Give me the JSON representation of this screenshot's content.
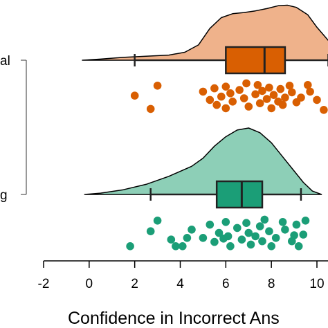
{
  "chart_data": {
    "type": "raincloud",
    "title": "",
    "xlabel": "Confidence in Incorrect Ans",
    "ylabel": "",
    "xlim": [
      -2,
      10.6
    ],
    "x_ticks": [
      -2,
      0,
      2,
      4,
      6,
      8,
      10
    ],
    "x_tick_labels": [
      "-2",
      "0",
      "2",
      "4",
      "6",
      "8",
      "10"
    ],
    "grid": false,
    "groups": [
      {
        "label": "al",
        "color": "#d95f02",
        "fill": "#efb28b",
        "density": {
          "x": [
            -0.3,
            0.5,
            1.5,
            2.5,
            3.5,
            4.2,
            4.8,
            5.3,
            5.8,
            6.3,
            6.8,
            7.3,
            7.8,
            8.3,
            8.7,
            9.1,
            9.6,
            10.0,
            10.6
          ],
          "y": [
            0.0,
            0.02,
            0.05,
            0.07,
            0.09,
            0.14,
            0.27,
            0.56,
            0.75,
            0.82,
            0.84,
            0.87,
            0.91,
            0.96,
            0.97,
            0.93,
            0.8,
            0.58,
            0.3
          ]
        },
        "box": {
          "whisker_low": 2.0,
          "q1": 6.0,
          "median": 7.7,
          "q3": 8.6,
          "whisker_high": 10.5
        },
        "points": [
          {
            "x": 2.0,
            "y": 0.42
          },
          {
            "x": 3.0,
            "y": 0.12
          },
          {
            "x": 2.7,
            "y": 0.82
          },
          {
            "x": 5.0,
            "y": 0.3
          },
          {
            "x": 5.3,
            "y": 0.55
          },
          {
            "x": 5.5,
            "y": 0.2
          },
          {
            "x": 5.6,
            "y": 0.7
          },
          {
            "x": 5.8,
            "y": 0.45
          },
          {
            "x": 6.0,
            "y": 0.15
          },
          {
            "x": 6.0,
            "y": 0.8
          },
          {
            "x": 6.2,
            "y": 0.35
          },
          {
            "x": 6.3,
            "y": 0.6
          },
          {
            "x": 6.6,
            "y": 0.25
          },
          {
            "x": 6.8,
            "y": 0.5
          },
          {
            "x": 6.9,
            "y": 0.05
          },
          {
            "x": 7.0,
            "y": 0.75
          },
          {
            "x": 7.3,
            "y": 0.38
          },
          {
            "x": 7.4,
            "y": 0.1
          },
          {
            "x": 7.5,
            "y": 0.65
          },
          {
            "x": 7.6,
            "y": 0.28
          },
          {
            "x": 7.8,
            "y": 0.52
          },
          {
            "x": 7.9,
            "y": 0.18
          },
          {
            "x": 8.0,
            "y": 0.8
          },
          {
            "x": 8.1,
            "y": 0.4
          },
          {
            "x": 8.3,
            "y": 0.6
          },
          {
            "x": 8.4,
            "y": 0.22
          },
          {
            "x": 8.5,
            "y": 0.7
          },
          {
            "x": 8.6,
            "y": 0.48
          },
          {
            "x": 8.8,
            "y": 0.12
          },
          {
            "x": 8.9,
            "y": 0.32
          },
          {
            "x": 9.1,
            "y": 0.62
          },
          {
            "x": 9.3,
            "y": 0.48
          },
          {
            "x": 9.6,
            "y": 0.1
          },
          {
            "x": 9.7,
            "y": 0.3
          },
          {
            "x": 10.0,
            "y": 0.55
          },
          {
            "x": 10.3,
            "y": 0.85
          }
        ]
      },
      {
        "label": "g",
        "color": "#1b9e77",
        "fill": "#8dcfb7",
        "density": {
          "x": [
            -0.2,
            0.5,
            1.5,
            2.5,
            3.5,
            4.5,
            5.0,
            5.5,
            6.0,
            6.5,
            7.0,
            7.5,
            8.0,
            8.5,
            9.0,
            9.4,
            9.8,
            10.2
          ],
          "y": [
            0.0,
            0.02,
            0.07,
            0.15,
            0.27,
            0.42,
            0.54,
            0.72,
            0.86,
            0.96,
            0.99,
            0.92,
            0.77,
            0.56,
            0.35,
            0.18,
            0.05,
            0.0
          ]
        },
        "box": {
          "whisker_low": 2.7,
          "q1": 5.6,
          "median": 6.7,
          "q3": 7.6,
          "whisker_high": 9.3
        },
        "points": [
          {
            "x": 1.8,
            "y": 0.85
          },
          {
            "x": 2.7,
            "y": 0.4
          },
          {
            "x": 3.0,
            "y": 0.08
          },
          {
            "x": 3.6,
            "y": 0.65
          },
          {
            "x": 3.8,
            "y": 0.85
          },
          {
            "x": 4.1,
            "y": 0.85
          },
          {
            "x": 4.3,
            "y": 0.6
          },
          {
            "x": 4.5,
            "y": 0.35
          },
          {
            "x": 5.0,
            "y": 0.6
          },
          {
            "x": 5.3,
            "y": 0.2
          },
          {
            "x": 5.5,
            "y": 0.72
          },
          {
            "x": 5.7,
            "y": 0.45
          },
          {
            "x": 6.0,
            "y": 0.12
          },
          {
            "x": 6.1,
            "y": 0.55
          },
          {
            "x": 6.2,
            "y": 0.85
          },
          {
            "x": 6.5,
            "y": 0.3
          },
          {
            "x": 6.7,
            "y": 0.65
          },
          {
            "x": 6.9,
            "y": 0.15
          },
          {
            "x": 7.0,
            "y": 0.45
          },
          {
            "x": 7.1,
            "y": 0.8
          },
          {
            "x": 7.3,
            "y": 0.55
          },
          {
            "x": 7.5,
            "y": 0.25
          },
          {
            "x": 7.6,
            "y": 0.7
          },
          {
            "x": 7.7,
            "y": 0.05
          },
          {
            "x": 7.9,
            "y": 0.4
          },
          {
            "x": 8.0,
            "y": 0.85
          },
          {
            "x": 8.2,
            "y": 0.6
          },
          {
            "x": 8.5,
            "y": 0.12
          },
          {
            "x": 8.6,
            "y": 0.35
          },
          {
            "x": 8.9,
            "y": 0.7
          },
          {
            "x": 9.1,
            "y": 0.2
          },
          {
            "x": 9.2,
            "y": 0.85
          },
          {
            "x": 9.4,
            "y": 0.5
          },
          {
            "x": 9.5,
            "y": 0.08
          },
          {
            "x": 9.0,
            "y": 0.52
          },
          {
            "x": 5.9,
            "y": 0.62
          }
        ]
      }
    ]
  }
}
